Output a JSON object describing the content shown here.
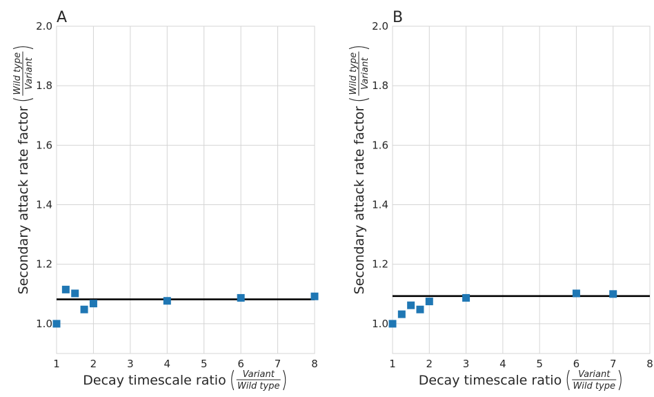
{
  "chart_data": [
    {
      "type": "scatter",
      "panel_label": "A",
      "xlabel": "Decay timescale ratio",
      "xlabel_fraction": {
        "numerator": "Variant",
        "denominator": "Wild  type"
      },
      "ylabel": "Secondary attack rate factor",
      "ylabel_fraction": {
        "numerator": "Wild  type",
        "denominator": "Variant"
      },
      "xlim": [
        1,
        8
      ],
      "ylim": [
        0.9,
        2.0
      ],
      "x_ticks": [
        "1",
        "2",
        "3",
        "4",
        "5",
        "6",
        "7",
        "8"
      ],
      "y_ticks": [
        "1.0",
        "1.2",
        "1.4",
        "1.6",
        "1.8",
        "2.0"
      ],
      "grid": true,
      "points": [
        {
          "x": 1.0,
          "y": 1.0
        },
        {
          "x": 1.25,
          "y": 1.115
        },
        {
          "x": 1.5,
          "y": 1.102
        },
        {
          "x": 1.75,
          "y": 1.048
        },
        {
          "x": 2.0,
          "y": 1.068
        },
        {
          "x": 4.0,
          "y": 1.077
        },
        {
          "x": 6.0,
          "y": 1.087
        },
        {
          "x": 8.0,
          "y": 1.092
        }
      ],
      "reference_line_y": 1.082,
      "marker_color": "#1f77b4",
      "line_color": "#000000"
    },
    {
      "type": "scatter",
      "panel_label": "B",
      "xlabel": "Decay timescale ratio",
      "xlabel_fraction": {
        "numerator": "Variant",
        "denominator": "Wild  type"
      },
      "ylabel": "Secondary attack rate factor",
      "ylabel_fraction": {
        "numerator": "Wild  type",
        "denominator": "Variant"
      },
      "xlim": [
        1,
        8
      ],
      "ylim": [
        0.9,
        2.0
      ],
      "x_ticks": [
        "1",
        "2",
        "3",
        "4",
        "5",
        "6",
        "7",
        "8"
      ],
      "y_ticks": [
        "1.0",
        "1.2",
        "1.4",
        "1.6",
        "1.8",
        "2.0"
      ],
      "grid": true,
      "points": [
        {
          "x": 1.0,
          "y": 1.0
        },
        {
          "x": 1.25,
          "y": 1.032
        },
        {
          "x": 1.5,
          "y": 1.062
        },
        {
          "x": 1.75,
          "y": 1.048
        },
        {
          "x": 2.0,
          "y": 1.075
        },
        {
          "x": 3.0,
          "y": 1.087
        },
        {
          "x": 6.0,
          "y": 1.102
        },
        {
          "x": 7.0,
          "y": 1.1
        }
      ],
      "reference_line_y": 1.093,
      "marker_color": "#1f77b4",
      "line_color": "#000000"
    }
  ]
}
